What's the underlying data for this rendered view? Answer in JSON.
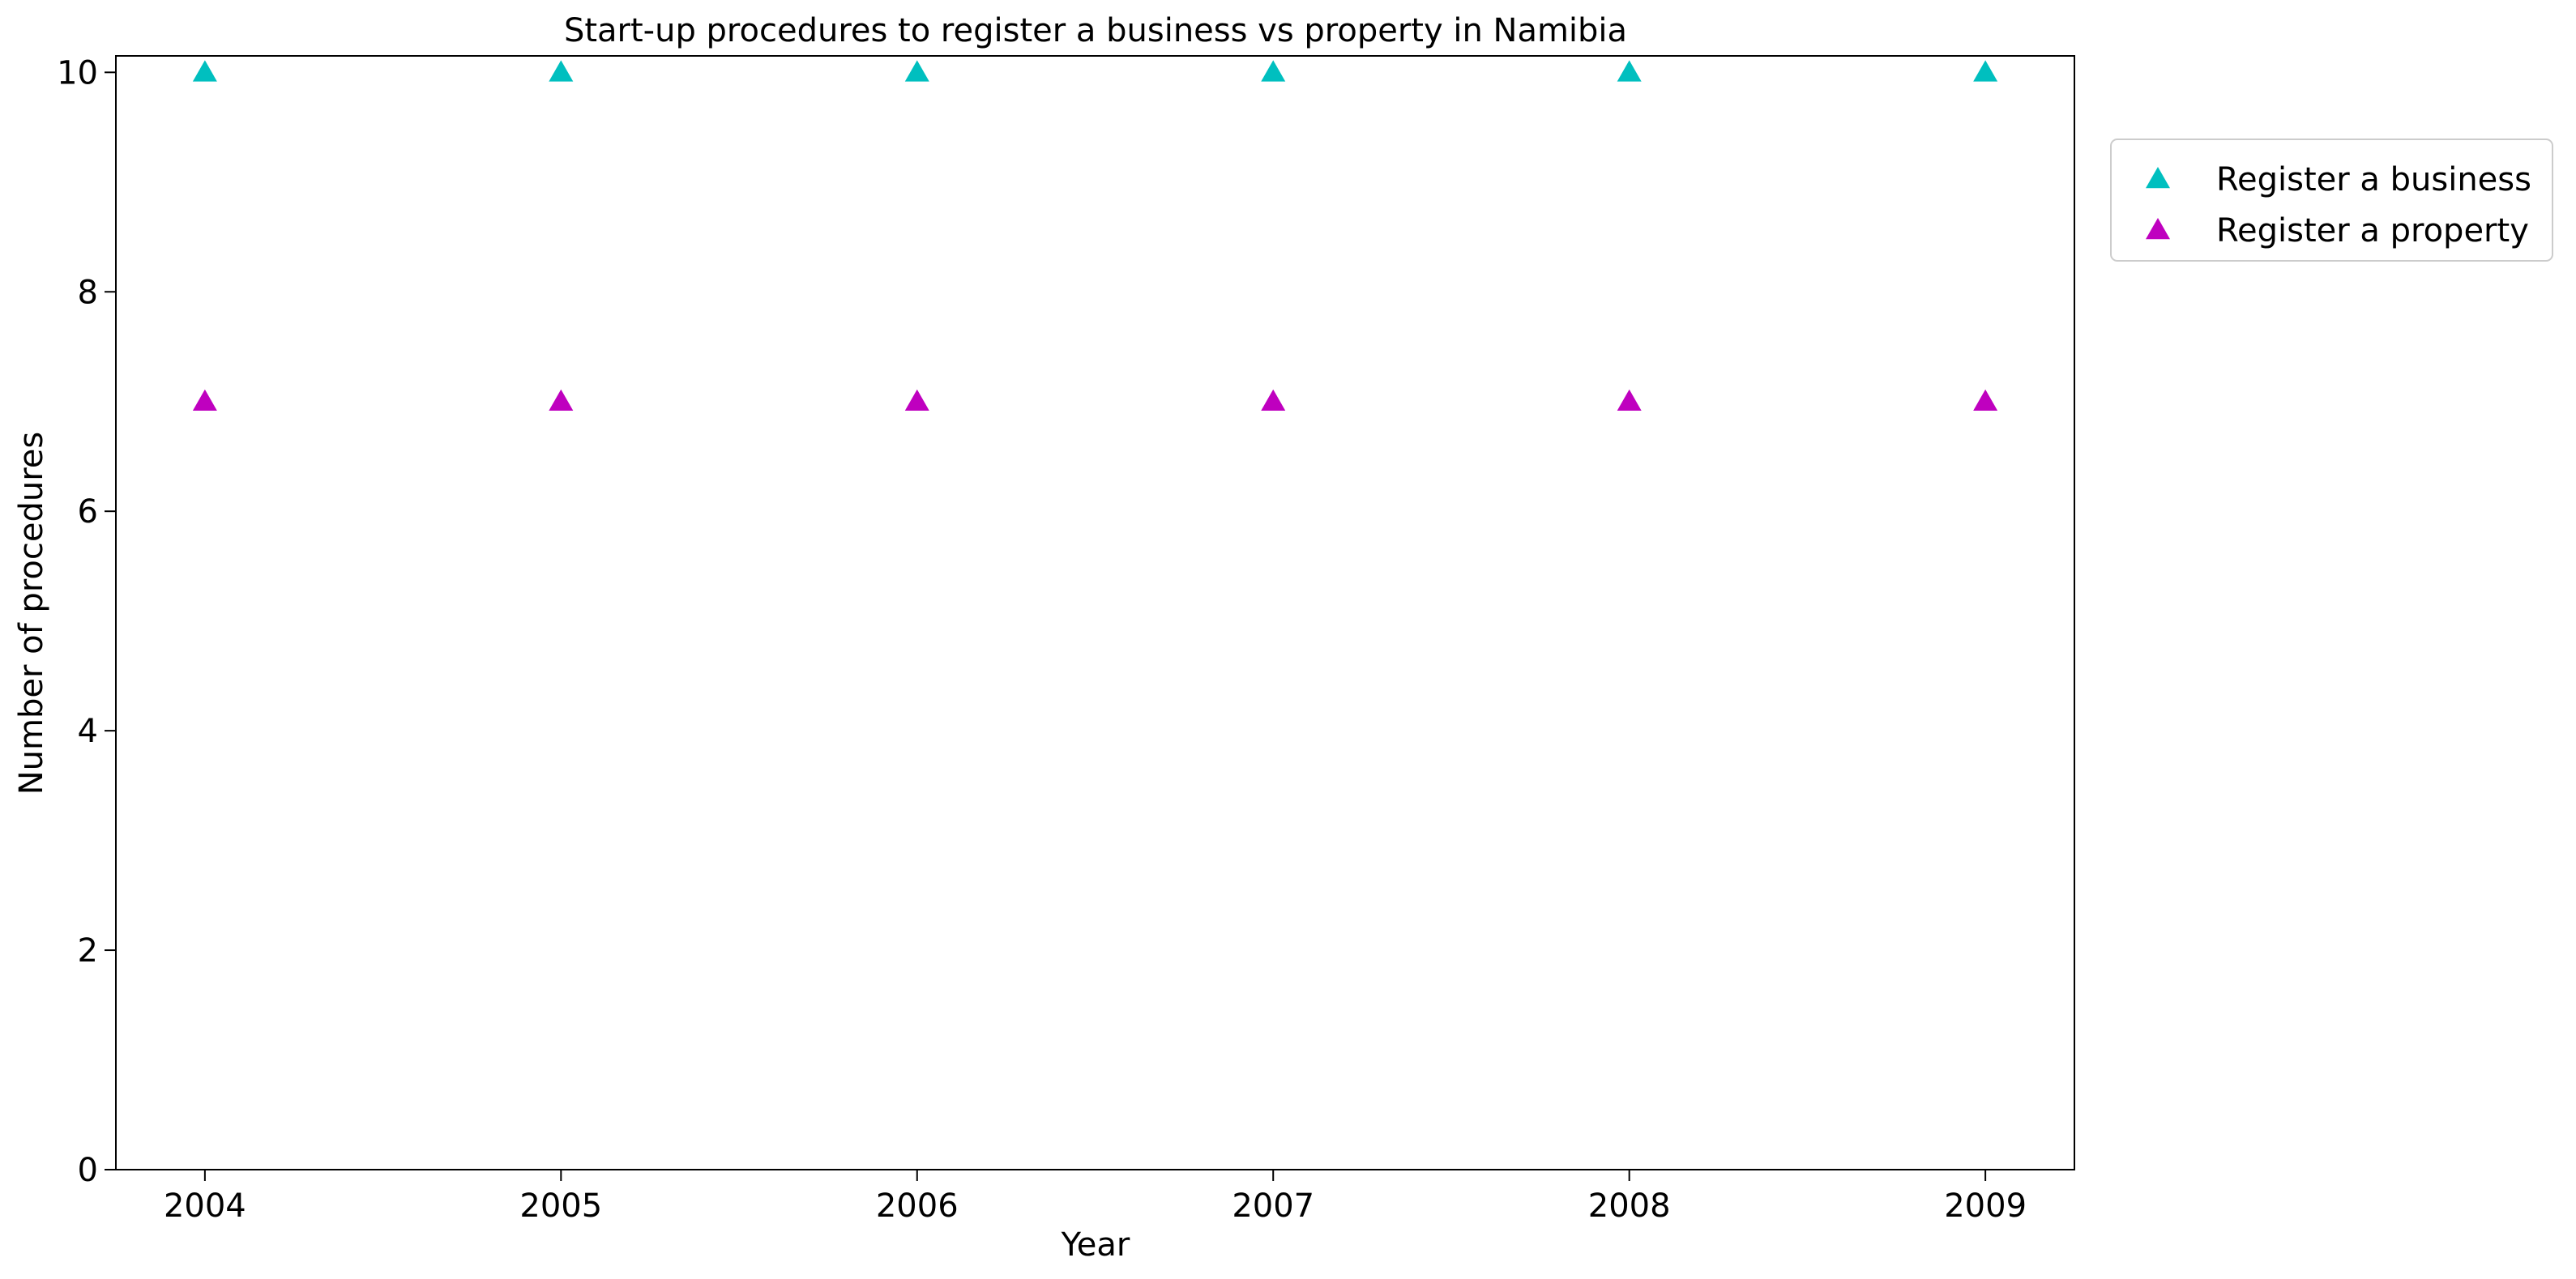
{
  "chart_data": {
    "type": "scatter",
    "title": "Start-up procedures to register a business vs property in Namibia",
    "xlabel": "Year",
    "ylabel": "Number of procedures",
    "x": [
      2004,
      2005,
      2006,
      2007,
      2008,
      2009
    ],
    "xticks": [
      "2004",
      "2005",
      "2006",
      "2007",
      "2008",
      "2009"
    ],
    "yticks": [
      0,
      2,
      4,
      6,
      8,
      10
    ],
    "xlim": [
      2003.75,
      2009.25
    ],
    "ylim": [
      0,
      10.15
    ],
    "grid": false,
    "legend_position": "outside-top-right",
    "marker": "triangle-up",
    "series": [
      {
        "name": "Register a business",
        "color": "#00bfbf",
        "values": [
          10,
          10,
          10,
          10,
          10,
          10
        ]
      },
      {
        "name": "Register a property",
        "color": "#bf00bf",
        "values": [
          7,
          7,
          7,
          7,
          7,
          7
        ]
      }
    ]
  }
}
